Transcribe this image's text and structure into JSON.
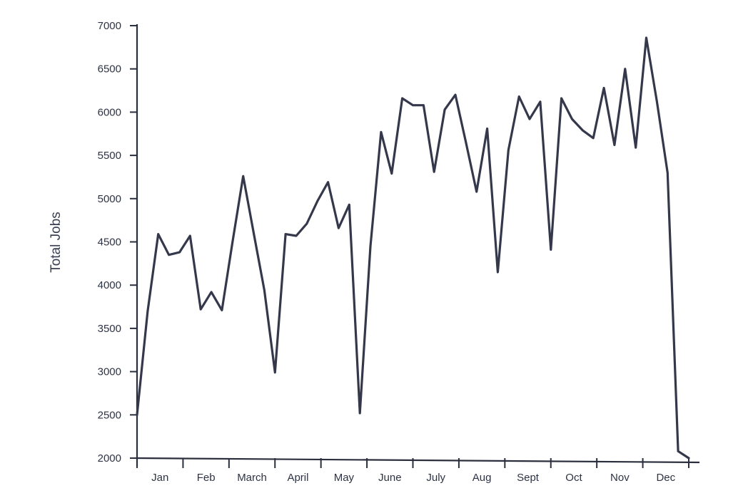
{
  "chart_data": {
    "type": "line",
    "title": "",
    "xlabel": "",
    "ylabel": "Total Jobs",
    "ylim": [
      2000,
      7000
    ],
    "yticks": [
      2000,
      2500,
      3000,
      3500,
      4000,
      4500,
      5000,
      5500,
      6000,
      6500,
      7000
    ],
    "categories": [
      "Jan",
      "Feb",
      "March",
      "April",
      "May",
      "June",
      "July",
      "Aug",
      "Sept",
      "Oct",
      "Nov",
      "Dec"
    ],
    "x_units": "week of year",
    "xlim": [
      0,
      52
    ],
    "grid": false,
    "legend": "none",
    "series": [
      {
        "x": [
          0.0,
          1.0,
          2.0,
          3.0,
          4.0,
          5.0,
          6.0,
          7.0,
          8.0,
          9.0,
          10.0,
          11.0,
          12.0,
          13.0,
          14.0,
          15.0,
          16.0,
          17.0,
          18.0,
          19.0,
          20.0,
          21.0,
          22.0,
          23.0,
          24.0,
          25.0,
          26.0,
          27.0,
          28.0,
          29.0,
          30.0,
          31.0,
          32.0,
          33.0,
          34.0,
          35.0,
          36.0,
          37.0,
          38.0,
          39.0,
          40.0,
          41.0,
          42.0,
          43.0,
          44.0,
          45.0,
          46.0,
          47.0,
          48.0,
          49.0,
          50.0,
          51.0,
          52.0
        ],
        "values": [
          2500,
          3700,
          4590,
          4350,
          4380,
          4570,
          3720,
          3920,
          3710,
          4500,
          5260,
          4600,
          3940,
          2990,
          4590,
          4570,
          4710,
          4970,
          5190,
          4660,
          4930,
          2520,
          4450,
          5770,
          5290,
          6160,
          6080,
          6080,
          5310,
          6030,
          6200,
          5650,
          5080,
          5810,
          4150,
          5560,
          6180,
          5920,
          6120,
          4410,
          6160,
          5920,
          5790,
          5700,
          6280,
          5620,
          6500,
          5590,
          6860,
          6120,
          5300,
          2080,
          2000
        ]
      }
    ]
  }
}
